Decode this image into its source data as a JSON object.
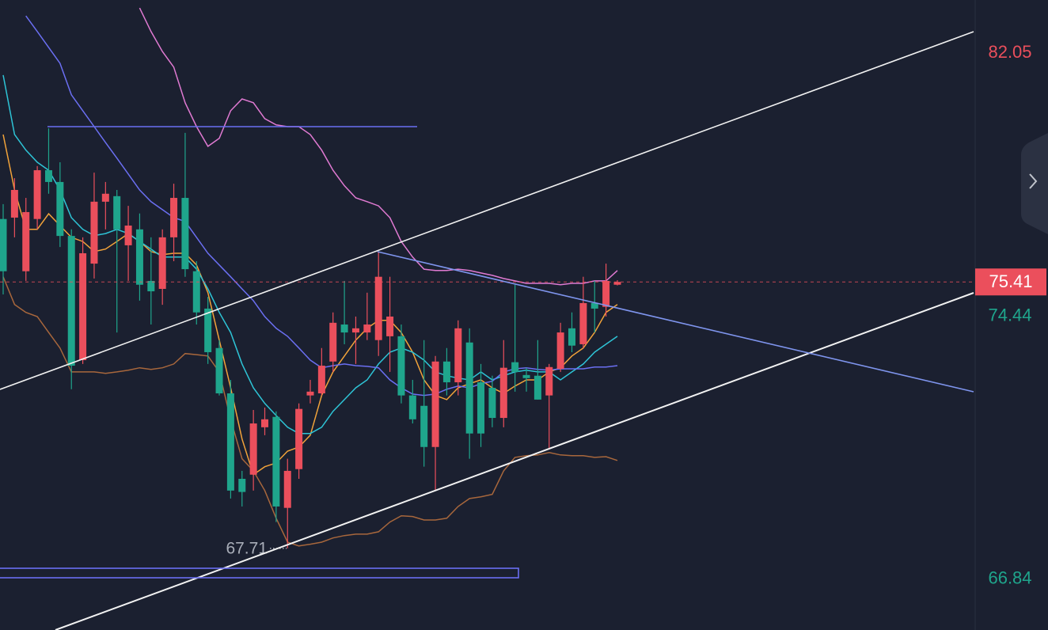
{
  "chart_data": {
    "type": "candlestick",
    "candles": {
      "open": [
        77.23,
        77.27,
        75.72,
        77.23,
        78.64,
        78.3,
        76.74,
        73.15,
        75.94,
        77.73,
        77.89,
        76.47,
        76.93,
        75.44,
        75.21,
        76.7,
        77.84,
        75.72,
        74.64,
        73.5,
        72.19,
        69.72,
        69.84,
        71.21,
        71.51,
        68.88,
        70.0,
        72.13,
        72.19,
        73.11,
        74.18,
        73.95,
        73.95,
        73.73,
        73.84,
        73.84,
        72.13,
        71.83,
        70.64,
        73.11,
        72.51,
        73.66,
        72.51,
        72.35,
        71.48,
        73.09,
        72.72,
        72.7,
        72.13,
        72.9,
        74.07,
        73.61,
        74.8,
        74.69,
        75.33
      ],
      "high": [
        77.66,
        78.41,
        77.84,
        78.76,
        79.85,
        78.87,
        76.93,
        76.7,
        78.57,
        78.3,
        78.07,
        77.61,
        77.39,
        76.7,
        76.93,
        78.25,
        79.72,
        76.01,
        74.98,
        73.73,
        72.58,
        69.95,
        71.71,
        71.78,
        71.67,
        70.3,
        71.9,
        72.58,
        73.5,
        74.53,
        75.44,
        74.41,
        75.1,
        76.29,
        75.56,
        74.18,
        72.58,
        73.73,
        73.27,
        73.5,
        74.3,
        74.07,
        73.04,
        72.7,
        73.73,
        75.33,
        72.93,
        73.73,
        73.04,
        74.23,
        74.53,
        75.56,
        75.44,
        75.94,
        75.46
      ],
      "low": [
        75.05,
        76.7,
        75.44,
        76.93,
        77.96,
        76.42,
        72.31,
        73.04,
        75.51,
        76.93,
        73.95,
        75.44,
        74.87,
        74.18,
        74.75,
        76.01,
        75.56,
        74.18,
        73.04,
        72.13,
        69.15,
        68.92,
        69.38,
        70.98,
        68.47,
        67.71,
        69.72,
        71.9,
        72.13,
        72.81,
        73.61,
        73.04,
        73.73,
        73.27,
        72.81,
        71.9,
        71.32,
        70.07,
        69.38,
        72.13,
        72.13,
        70.3,
        70.64,
        71.21,
        71.21,
        72.24,
        72.24,
        72.01,
        70.57,
        72.81,
        73.38,
        73.5,
        73.95,
        74.41,
        75.31
      ],
      "close": [
        75.72,
        78.07,
        77.43,
        78.64,
        78.3,
        76.74,
        72.99,
        76.24,
        77.73,
        77.96,
        76.93,
        77.04,
        75.33,
        75.14,
        76.7,
        77.84,
        75.78,
        74.53,
        73.38,
        72.19,
        69.38,
        69.34,
        71.32,
        71.44,
        68.92,
        69.95,
        71.74,
        72.24,
        72.99,
        74.23,
        73.95,
        74.07,
        74.18,
        75.56,
        74.41,
        72.13,
        71.44,
        70.64,
        73.11,
        72.51,
        74.07,
        71.03,
        71.03,
        71.48,
        72.93,
        72.81,
        72.63,
        72.01,
        72.95,
        73.95,
        73.57,
        74.8,
        74.64,
        75.44,
        75.41
      ]
    },
    "up_color": "#eb4f5c",
    "down_color": "#1fa58c",
    "series": [
      {
        "color": "#f2a33a",
        "values": [
          79.67,
          78.07,
          76.93,
          76.93,
          77.38,
          77.04,
          76.7,
          76.58,
          76.29,
          76.36,
          76.58,
          76.81,
          76.58,
          76.29,
          76.2,
          76.24,
          76.24,
          75.9,
          75.1,
          73.73,
          72.35,
          70.87,
          69.84,
          70.07,
          70.18,
          70.52,
          70.64,
          70.98,
          72.13,
          72.81,
          73.27,
          73.73,
          74.07,
          74.3,
          74.3,
          73.95,
          73.38,
          72.58,
          72.13,
          72.01,
          72.35,
          72.47,
          72.58,
          72.35,
          72.19,
          72.4,
          72.58,
          72.58,
          72.81,
          72.93,
          73.27,
          73.5,
          73.95,
          74.53,
          74.76
        ]
      },
      {
        "color": "#2ec4d6",
        "values": [
          81.39,
          79.67,
          79.22,
          78.87,
          78.64,
          78.07,
          77.27,
          76.93,
          76.75,
          76.81,
          76.93,
          76.81,
          76.58,
          76.36,
          76.13,
          76.13,
          76.13,
          75.78,
          75.21,
          74.53,
          73.95,
          73.04,
          72.35,
          71.9,
          71.55,
          71.21,
          71.03,
          71.03,
          71.21,
          71.67,
          72.01,
          72.35,
          72.58,
          73.04,
          73.38,
          73.5,
          73.38,
          73.15,
          72.81,
          72.7,
          72.63,
          72.58,
          72.81,
          72.58,
          72.7,
          72.81,
          72.86,
          72.81,
          72.81,
          72.58,
          72.81,
          73.04,
          73.38,
          73.61,
          73.84
        ]
      },
      {
        "color": "#6b6ff2",
        "values": [
          null,
          null,
          83.1,
          82.65,
          82.19,
          81.73,
          80.82,
          80.36,
          79.9,
          79.44,
          78.99,
          78.53,
          78.07,
          77.73,
          77.5,
          77.27,
          77.16,
          76.7,
          76.24,
          75.9,
          75.56,
          75.21,
          74.87,
          74.41,
          74.07,
          73.84,
          73.5,
          73.15,
          72.93,
          72.99,
          73.04,
          72.99,
          72.97,
          72.93,
          72.58,
          72.35,
          72.17,
          72.13,
          72.17,
          72.31,
          72.4,
          72.35,
          72.47,
          72.54,
          72.81,
          72.9,
          72.93,
          72.88,
          72.86,
          72.9,
          72.9,
          72.9,
          72.95,
          72.95,
          72.99
        ]
      },
      {
        "color": "#e07ad2",
        "values": [
          null,
          null,
          null,
          null,
          null,
          null,
          null,
          null,
          null,
          null,
          null,
          null,
          83.33,
          82.65,
          82.07,
          81.62,
          80.59,
          79.9,
          79.33,
          79.56,
          80.36,
          80.7,
          80.59,
          80.13,
          79.95,
          79.9,
          79.9,
          79.67,
          79.22,
          78.64,
          78.19,
          77.84,
          77.73,
          77.61,
          77.27,
          76.58,
          76.13,
          75.78,
          75.74,
          75.74,
          75.78,
          75.74,
          75.67,
          75.6,
          75.51,
          75.44,
          75.37,
          75.37,
          75.37,
          75.33,
          75.37,
          75.37,
          75.44,
          75.44,
          75.74
        ]
      },
      {
        "color": "#a8673c",
        "values": [
          75.56,
          74.76,
          74.53,
          74.41,
          73.95,
          73.5,
          72.81,
          72.81,
          72.81,
          72.77,
          72.81,
          72.86,
          72.93,
          72.88,
          72.93,
          73.04,
          73.34,
          73.31,
          73.27,
          72.81,
          71.44,
          70.3,
          69.95,
          69.38,
          68.58,
          67.89,
          67.78,
          67.83,
          67.89,
          68.01,
          68.08,
          68.12,
          68.12,
          68.19,
          68.47,
          68.65,
          68.63,
          68.53,
          68.53,
          68.58,
          68.92,
          69.15,
          69.2,
          69.27,
          69.95,
          70.34,
          70.39,
          70.41,
          70.48,
          70.41,
          70.39,
          70.39,
          70.34,
          70.36,
          70.25
        ]
      }
    ],
    "ylim": [
      65.35,
      83.56
    ],
    "yticks": [
      66.84,
      74.44,
      82.05
    ],
    "ytick_colors": [
      "#1fa58c",
      "#1fa58c",
      "#eb4f5c"
    ],
    "grid": false,
    "last_price": 75.41,
    "last_price_color": "#eb4f5c",
    "low_annotation": 67.71
  }
}
